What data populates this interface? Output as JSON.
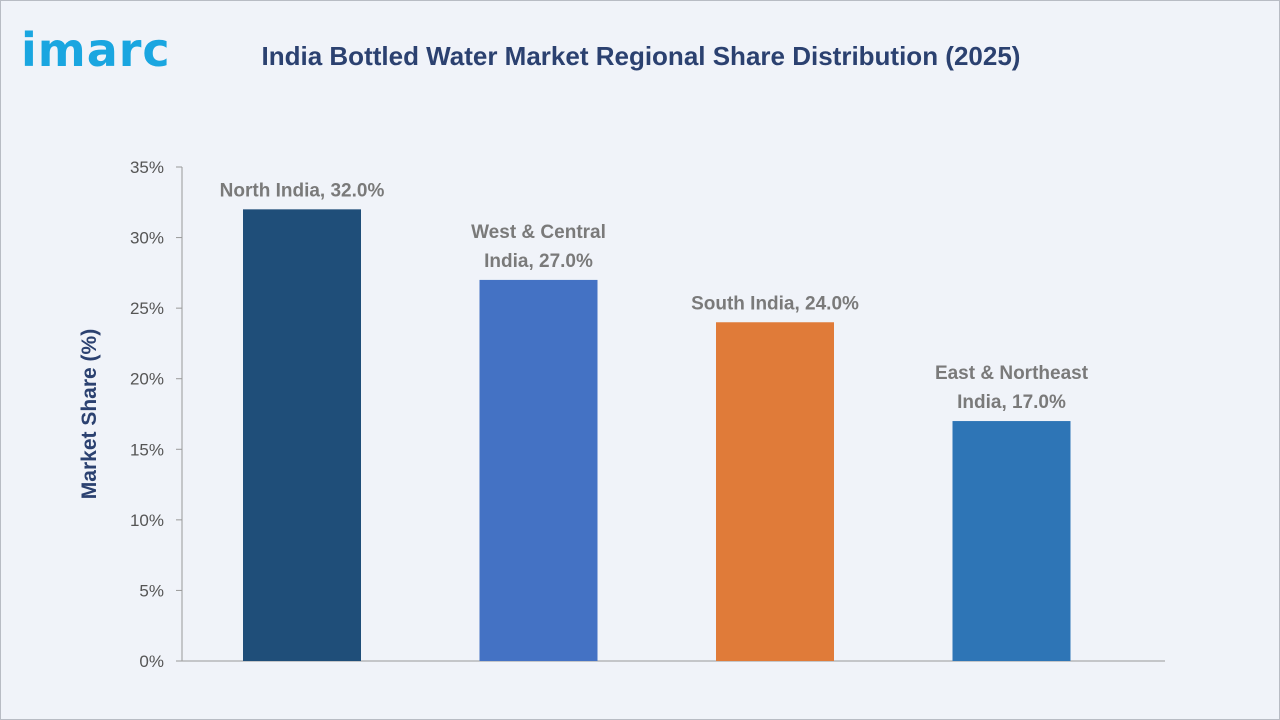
{
  "logo": {
    "text": "imarc"
  },
  "colors": {
    "background": "#f0f3f9",
    "title": "#2b4170",
    "logo": "#1aa6e0",
    "axis": "#999999"
  },
  "chart_data": {
    "type": "bar",
    "title": "India Bottled Water Market Regional Share Distribution (2025)",
    "xlabel": "",
    "ylabel": "Market Share (%)",
    "ylim": [
      0,
      35
    ],
    "yticks": [
      0,
      5,
      10,
      15,
      20,
      25,
      30,
      35
    ],
    "ytick_labels": [
      "0%",
      "5%",
      "10%",
      "15%",
      "20%",
      "25%",
      "30%",
      "35%"
    ],
    "categories": [
      "North India",
      "West & Central India",
      "South India",
      "East & Northeast India"
    ],
    "values": [
      32.0,
      27.0,
      24.0,
      17.0
    ],
    "bar_colors": [
      "#1f4e79",
      "#4472c4",
      "#e07b39",
      "#2e75b6"
    ],
    "data_labels": [
      [
        "North India, 32.0%"
      ],
      [
        "West & Central",
        "India, 27.0%"
      ],
      [
        "South India, 24.0%"
      ],
      [
        "East & Northeast",
        "India, 17.0%"
      ]
    ],
    "grid": false,
    "legend": "none"
  }
}
